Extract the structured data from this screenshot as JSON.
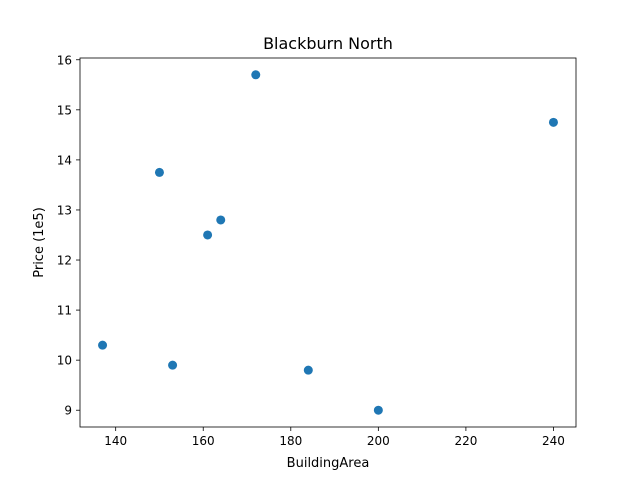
{
  "chart_data": {
    "type": "scatter",
    "title": "Blackburn North",
    "xlabel": "BuildingArea",
    "ylabel": "Price (1e5)",
    "xlim": [
      131.85,
      245.15
    ],
    "ylim": [
      8.665,
      16.035
    ],
    "xticks": [
      140,
      160,
      180,
      200,
      220,
      240
    ],
    "yticks": [
      9,
      10,
      11,
      12,
      13,
      14,
      15,
      16
    ],
    "x": [
      137,
      150,
      153,
      161,
      164,
      172,
      184,
      200,
      240
    ],
    "y": [
      10.3,
      13.75,
      9.9,
      12.5,
      12.8,
      15.7,
      9.8,
      9.0,
      14.75
    ],
    "marker_color": "#1f77b4",
    "grid": false,
    "legend": false
  }
}
